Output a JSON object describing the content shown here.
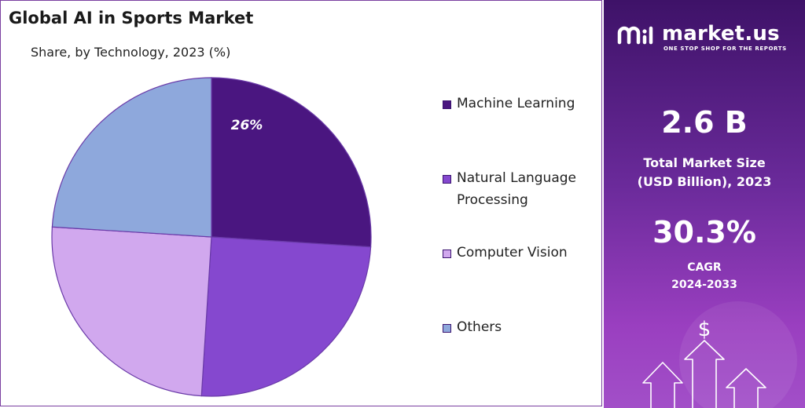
{
  "chart_data": {
    "type": "pie",
    "title": "Global AI in Sports Market",
    "subtitle": "Share, by Technology, 2023 (%)",
    "series": [
      {
        "name": "Machine Learning",
        "value": 26,
        "color": "#4a1680",
        "label": "26%"
      },
      {
        "name": "Natural Language Processing",
        "value": 25,
        "color": "#8548cf",
        "label": ""
      },
      {
        "name": "Computer Vision",
        "value": 25,
        "color": "#d1a8ee",
        "label": ""
      },
      {
        "name": "Others",
        "value": 24,
        "color": "#8ea8dc",
        "label": ""
      }
    ],
    "legend_placement": "right"
  },
  "legend": [
    {
      "lines": [
        "Machine Learning"
      ],
      "color": "#4a1680"
    },
    {
      "lines": [
        "Natural Language",
        "Processing"
      ],
      "color": "#8548cf"
    },
    {
      "lines": [
        "Computer Vision"
      ],
      "color": "#d1a8ee"
    },
    {
      "lines": [
        "Others"
      ],
      "color": "#8ea8dc"
    }
  ],
  "side_panel": {
    "brand_name": "market.us",
    "tagline": "ONE STOP SHOP FOR THE REPORTS",
    "market_size_value": "2.6 B",
    "market_size_label_1": "Total Market Size",
    "market_size_label_2": "(USD Billion), 2023",
    "cagr_value": "30.3%",
    "cagr_label": "CAGR",
    "cagr_period": "2024-2033",
    "dollar_symbol": "$"
  }
}
